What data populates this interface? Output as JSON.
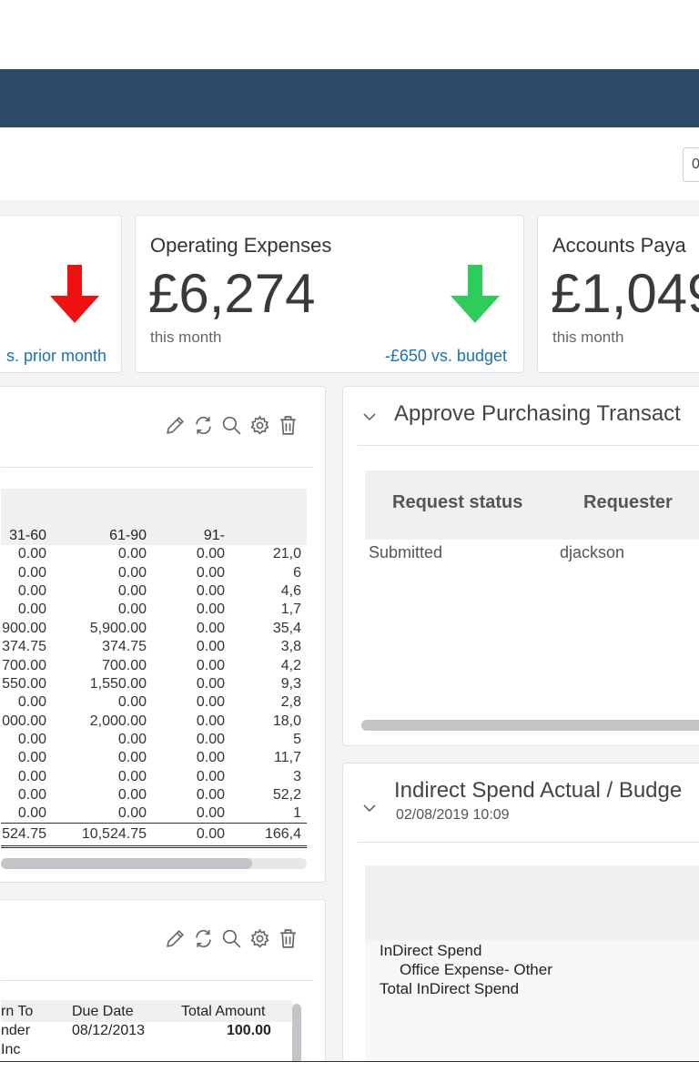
{
  "toolbar": {
    "input_value": "0"
  },
  "kpis": [
    {
      "title": "",
      "value": "",
      "sub": "",
      "link": "s. prior month",
      "trend": "down",
      "arrow_color": "#ee1111"
    },
    {
      "title": "Operating Expenses",
      "value": "£6,274",
      "sub": "this month",
      "link": "-£650 vs. budget",
      "trend": "down",
      "arrow_color": "#2ecc5a"
    },
    {
      "title": "Accounts Paya",
      "value": "£1,049",
      "sub": "this month",
      "link": ""
    }
  ],
  "widget_icons": [
    "edit-icon",
    "refresh-icon",
    "search-icon",
    "settings-icon",
    "delete-icon"
  ],
  "aging_table": {
    "headers": [
      "31-60",
      "61-90",
      "91-",
      ""
    ],
    "rows": [
      [
        "0.00",
        "0.00",
        "0.00",
        "21,0"
      ],
      [
        "0.00",
        "0.00",
        "0.00",
        "6"
      ],
      [
        "0.00",
        "0.00",
        "0.00",
        "4,6"
      ],
      [
        "0.00",
        "0.00",
        "0.00",
        "1,7"
      ],
      [
        "900.00",
        "5,900.00",
        "0.00",
        "35,4"
      ],
      [
        "374.75",
        "374.75",
        "0.00",
        "3,8"
      ],
      [
        "700.00",
        "700.00",
        "0.00",
        "4,2"
      ],
      [
        "550.00",
        "1,550.00",
        "0.00",
        "9,3"
      ],
      [
        "0.00",
        "0.00",
        "0.00",
        "2,8"
      ],
      [
        "000.00",
        "2,000.00",
        "0.00",
        "18,0"
      ],
      [
        "0.00",
        "0.00",
        "0.00",
        "5"
      ],
      [
        "0.00",
        "0.00",
        "0.00",
        "11,7"
      ],
      [
        "0.00",
        "0.00",
        "0.00",
        "3"
      ],
      [
        "0.00",
        "0.00",
        "0.00",
        "52,2"
      ],
      [
        "0.00",
        "0.00",
        "0.00",
        "1"
      ]
    ],
    "totals": [
      "524.75",
      "10,524.75",
      "0.00",
      "166,4"
    ]
  },
  "ap_widget": {
    "headers": {
      "col1": "rn To",
      "col2": "Due Date",
      "col3": "Total Amount"
    },
    "row1": {
      "col1": "nder",
      "col2": "08/12/2013",
      "col3": "100.00"
    },
    "row2": {
      "col1": "Inc"
    }
  },
  "approve_panel": {
    "title": "Approve Purchasing Transact",
    "columns": [
      "Request status",
      "Requester"
    ],
    "rows": [
      [
        "Submitted",
        "djackson"
      ]
    ]
  },
  "spend_panel": {
    "title": "Indirect Spend Actual / Budge",
    "timestamp": "02/08/2019 10:09",
    "rows": [
      "InDirect Spend",
      "Office Expense- Other",
      "Total InDirect Spend"
    ]
  }
}
